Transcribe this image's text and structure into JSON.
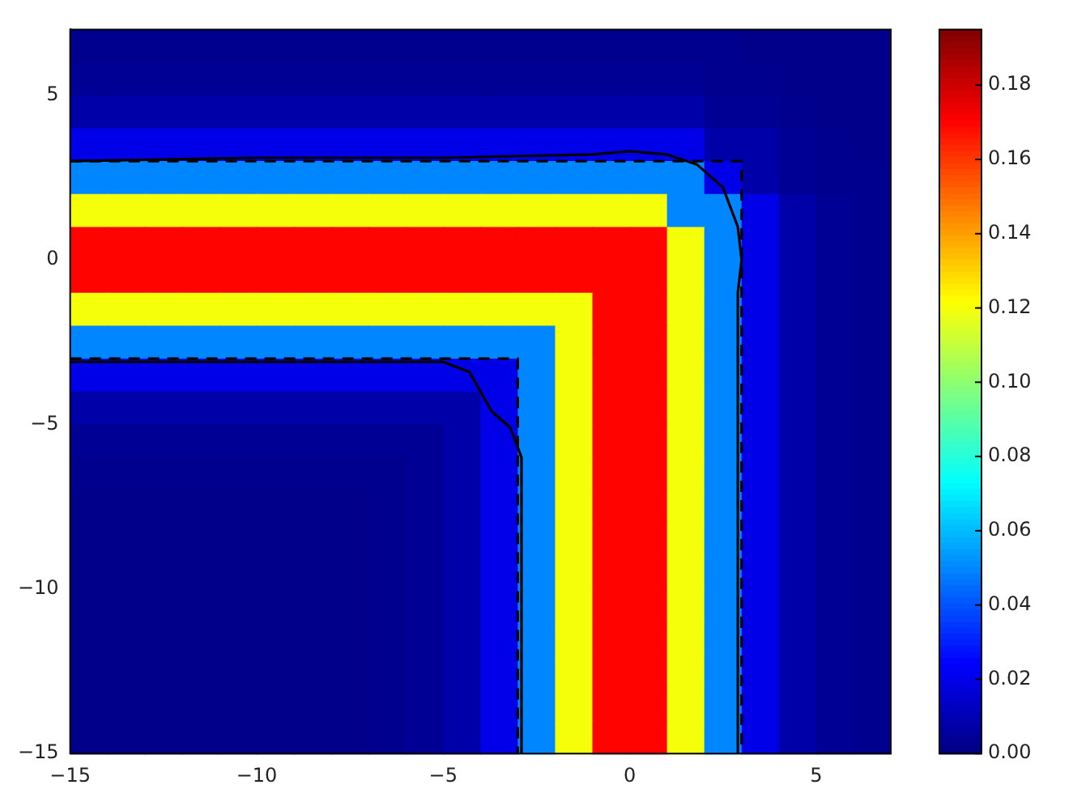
{
  "chart_data": {
    "type": "heatmap",
    "xlim": [
      -15,
      7
    ],
    "ylim": [
      -15,
      7
    ],
    "xticks": [
      {
        "value": -15,
        "label": "−15"
      },
      {
        "value": -10,
        "label": "−10"
      },
      {
        "value": -5,
        "label": "−5"
      },
      0,
      5
    ],
    "yticks": [
      {
        "value": -15,
        "label": "−15"
      },
      {
        "value": -10,
        "label": "−10"
      },
      {
        "value": -5,
        "label": "−5"
      },
      0,
      5
    ],
    "clim": [
      0,
      0.195
    ],
    "cticks": [
      {
        "value": 0,
        "label": "0.00"
      },
      {
        "value": 0.02,
        "label": "0.02"
      },
      {
        "value": 0.04,
        "label": "0.04"
      },
      {
        "value": 0.06,
        "label": "0.06"
      },
      {
        "value": 0.08,
        "label": "0.08"
      },
      {
        "value": 0.1,
        "label": "0.10"
      },
      {
        "value": 0.12,
        "label": "0.12"
      },
      {
        "value": 0.14,
        "label": "0.14"
      },
      {
        "value": 0.16,
        "label": "0.16"
      },
      {
        "value": 0.18,
        "label": "0.18"
      }
    ],
    "grid": false,
    "legend": false,
    "cells": [
      [
        0.003,
        0.003,
        0.003,
        0.003,
        0.003,
        0.003,
        0.003,
        0.003,
        0.003,
        0.003,
        0.003,
        0.003,
        0.003,
        0.003,
        0.003,
        0.003,
        0.003,
        0.003,
        0.002,
        0.002,
        0.002,
        0.002
      ],
      [
        0.004,
        0.004,
        0.004,
        0.004,
        0.004,
        0.004,
        0.004,
        0.004,
        0.004,
        0.004,
        0.004,
        0.004,
        0.004,
        0.004,
        0.004,
        0.004,
        0.004,
        0.003,
        0.003,
        0.002,
        0.002,
        0.002
      ],
      [
        0.008,
        0.008,
        0.008,
        0.008,
        0.008,
        0.008,
        0.008,
        0.008,
        0.008,
        0.008,
        0.008,
        0.008,
        0.008,
        0.008,
        0.008,
        0.008,
        0.008,
        0.004,
        0.004,
        0.003,
        0.002,
        0.002
      ],
      [
        0.02,
        0.02,
        0.02,
        0.02,
        0.02,
        0.02,
        0.02,
        0.02,
        0.02,
        0.02,
        0.02,
        0.02,
        0.02,
        0.02,
        0.02,
        0.02,
        0.02,
        0.008,
        0.008,
        0.004,
        0.003,
        0.002
      ],
      [
        0.05,
        0.05,
        0.05,
        0.05,
        0.05,
        0.05,
        0.05,
        0.05,
        0.05,
        0.05,
        0.05,
        0.05,
        0.05,
        0.05,
        0.05,
        0.05,
        0.05,
        0.02,
        0.008,
        0.004,
        0.003,
        0.003
      ],
      [
        0.12,
        0.12,
        0.12,
        0.12,
        0.12,
        0.12,
        0.12,
        0.12,
        0.12,
        0.12,
        0.12,
        0.12,
        0.12,
        0.12,
        0.12,
        0.12,
        0.05,
        0.05,
        0.02,
        0.008,
        0.004,
        0.003
      ],
      [
        0.17,
        0.17,
        0.17,
        0.17,
        0.17,
        0.17,
        0.17,
        0.17,
        0.17,
        0.17,
        0.17,
        0.17,
        0.17,
        0.17,
        0.17,
        0.17,
        0.12,
        0.05,
        0.02,
        0.008,
        0.004,
        0.003
      ],
      [
        0.17,
        0.17,
        0.17,
        0.17,
        0.17,
        0.17,
        0.17,
        0.17,
        0.17,
        0.17,
        0.17,
        0.17,
        0.17,
        0.17,
        0.17,
        0.17,
        0.12,
        0.05,
        0.02,
        0.008,
        0.004,
        0.003
      ],
      [
        0.12,
        0.12,
        0.12,
        0.12,
        0.12,
        0.12,
        0.12,
        0.12,
        0.12,
        0.12,
        0.12,
        0.12,
        0.12,
        0.12,
        0.17,
        0.17,
        0.12,
        0.05,
        0.02,
        0.008,
        0.004,
        0.003
      ],
      [
        0.05,
        0.05,
        0.05,
        0.05,
        0.05,
        0.05,
        0.05,
        0.05,
        0.05,
        0.05,
        0.05,
        0.05,
        0.05,
        0.12,
        0.17,
        0.17,
        0.12,
        0.05,
        0.02,
        0.008,
        0.004,
        0.003
      ],
      [
        0.02,
        0.02,
        0.02,
        0.02,
        0.02,
        0.02,
        0.02,
        0.02,
        0.02,
        0.02,
        0.02,
        0.02,
        0.05,
        0.12,
        0.17,
        0.17,
        0.12,
        0.05,
        0.02,
        0.008,
        0.004,
        0.003
      ],
      [
        0.008,
        0.008,
        0.008,
        0.008,
        0.008,
        0.008,
        0.008,
        0.008,
        0.008,
        0.008,
        0.008,
        0.02,
        0.05,
        0.12,
        0.17,
        0.17,
        0.12,
        0.05,
        0.02,
        0.008,
        0.004,
        0.003
      ],
      [
        0.004,
        0.004,
        0.004,
        0.004,
        0.004,
        0.004,
        0.004,
        0.004,
        0.004,
        0.004,
        0.008,
        0.02,
        0.05,
        0.12,
        0.17,
        0.17,
        0.12,
        0.05,
        0.02,
        0.008,
        0.004,
        0.003
      ],
      [
        0.003,
        0.003,
        0.003,
        0.003,
        0.003,
        0.003,
        0.003,
        0.003,
        0.003,
        0.004,
        0.008,
        0.02,
        0.05,
        0.12,
        0.17,
        0.17,
        0.12,
        0.05,
        0.02,
        0.008,
        0.004,
        0.003
      ],
      [
        0.002,
        0.002,
        0.002,
        0.002,
        0.002,
        0.002,
        0.002,
        0.002,
        0.003,
        0.004,
        0.008,
        0.02,
        0.05,
        0.12,
        0.17,
        0.17,
        0.12,
        0.05,
        0.02,
        0.008,
        0.004,
        0.003
      ],
      [
        0.002,
        0.002,
        0.002,
        0.002,
        0.002,
        0.002,
        0.002,
        0.002,
        0.003,
        0.004,
        0.008,
        0.02,
        0.05,
        0.12,
        0.17,
        0.17,
        0.12,
        0.05,
        0.02,
        0.008,
        0.004,
        0.003
      ],
      [
        0.002,
        0.002,
        0.002,
        0.002,
        0.002,
        0.002,
        0.002,
        0.002,
        0.003,
        0.004,
        0.008,
        0.02,
        0.05,
        0.12,
        0.17,
        0.17,
        0.12,
        0.05,
        0.02,
        0.008,
        0.004,
        0.003
      ],
      [
        0.002,
        0.002,
        0.002,
        0.002,
        0.002,
        0.002,
        0.002,
        0.002,
        0.003,
        0.004,
        0.008,
        0.02,
        0.05,
        0.12,
        0.17,
        0.17,
        0.12,
        0.05,
        0.02,
        0.008,
        0.004,
        0.003
      ],
      [
        0.002,
        0.002,
        0.002,
        0.002,
        0.002,
        0.002,
        0.002,
        0.002,
        0.003,
        0.004,
        0.008,
        0.02,
        0.05,
        0.12,
        0.17,
        0.17,
        0.12,
        0.05,
        0.02,
        0.008,
        0.004,
        0.003
      ],
      [
        0.002,
        0.002,
        0.002,
        0.002,
        0.002,
        0.002,
        0.002,
        0.002,
        0.003,
        0.004,
        0.008,
        0.02,
        0.05,
        0.12,
        0.17,
        0.17,
        0.12,
        0.05,
        0.02,
        0.008,
        0.004,
        0.003
      ],
      [
        0.002,
        0.002,
        0.002,
        0.002,
        0.002,
        0.002,
        0.002,
        0.002,
        0.003,
        0.004,
        0.008,
        0.02,
        0.05,
        0.12,
        0.17,
        0.17,
        0.12,
        0.05,
        0.02,
        0.008,
        0.004,
        0.003
      ],
      [
        0.002,
        0.002,
        0.002,
        0.002,
        0.002,
        0.002,
        0.002,
        0.002,
        0.003,
        0.004,
        0.008,
        0.02,
        0.05,
        0.12,
        0.17,
        0.17,
        0.12,
        0.05,
        0.02,
        0.008,
        0.004,
        0.003
      ]
    ],
    "series": [
      {
        "type": "line",
        "color": "#000000",
        "line_style": "solid",
        "marker": "none",
        "x": [
          -15,
          -10,
          -5,
          -1,
          0,
          1,
          1.8,
          2.5,
          2.9,
          3,
          2.9,
          2.9
        ],
        "values": [
          3,
          3.1,
          3.1,
          3.2,
          3.3,
          3.2,
          2.9,
          2.2,
          1,
          0,
          -1,
          -15
        ]
      },
      {
        "type": "line",
        "color": "#000000",
        "line_style": "solid",
        "marker": "none",
        "x": [
          -15,
          -10,
          -5,
          -4.3,
          -4,
          -3.7,
          -3.2,
          -2.9,
          -2.9
        ],
        "values": [
          -3.1,
          -3.1,
          -3.1,
          -3.4,
          -4,
          -4.6,
          -5.1,
          -6,
          -15
        ]
      },
      {
        "type": "line",
        "color": "#000000",
        "line_style": "dashed",
        "marker": "none",
        "x": [
          -15,
          3,
          3
        ],
        "values": [
          3,
          3,
          -15
        ]
      },
      {
        "type": "line",
        "color": "#000000",
        "line_style": "dashed",
        "marker": "none",
        "x": [
          -15,
          -3,
          -3
        ],
        "values": [
          -3,
          -3,
          -15
        ]
      }
    ]
  }
}
